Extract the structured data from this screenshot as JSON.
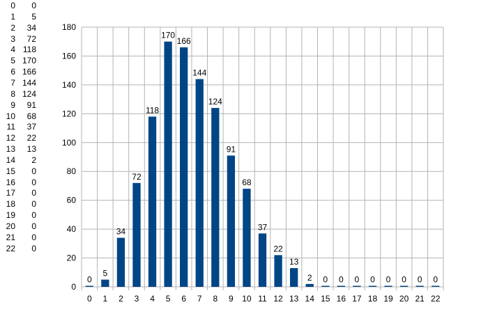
{
  "data_table": {
    "rows": [
      {
        "k": "0",
        "v": "0"
      },
      {
        "k": "1",
        "v": "5"
      },
      {
        "k": "2",
        "v": "34"
      },
      {
        "k": "3",
        "v": "72"
      },
      {
        "k": "4",
        "v": "118"
      },
      {
        "k": "5",
        "v": "170"
      },
      {
        "k": "6",
        "v": "166"
      },
      {
        "k": "7",
        "v": "144"
      },
      {
        "k": "8",
        "v": "124"
      },
      {
        "k": "9",
        "v": "91"
      },
      {
        "k": "10",
        "v": "68"
      },
      {
        "k": "11",
        "v": "37"
      },
      {
        "k": "12",
        "v": "22"
      },
      {
        "k": "13",
        "v": "13"
      },
      {
        "k": "14",
        "v": "2"
      },
      {
        "k": "15",
        "v": "0"
      },
      {
        "k": "16",
        "v": "0"
      },
      {
        "k": "17",
        "v": "0"
      },
      {
        "k": "18",
        "v": "0"
      },
      {
        "k": "19",
        "v": "0"
      },
      {
        "k": "20",
        "v": "0"
      },
      {
        "k": "21",
        "v": "0"
      },
      {
        "k": "22",
        "v": "0"
      }
    ]
  },
  "chart_data": {
    "type": "bar",
    "categories": [
      "0",
      "1",
      "2",
      "3",
      "4",
      "5",
      "6",
      "7",
      "8",
      "9",
      "10",
      "11",
      "12",
      "13",
      "14",
      "15",
      "16",
      "17",
      "18",
      "19",
      "20",
      "21",
      "22"
    ],
    "values": [
      0,
      5,
      34,
      72,
      118,
      170,
      166,
      144,
      124,
      91,
      68,
      37,
      22,
      13,
      2,
      0,
      0,
      0,
      0,
      0,
      0,
      0,
      0
    ],
    "ylim": [
      0,
      180
    ],
    "yticks": [
      0,
      20,
      40,
      60,
      80,
      100,
      120,
      140,
      160,
      180
    ],
    "grid": true,
    "data_labels": true,
    "bar_color": "#004586",
    "grid_color": "#b3b3b3"
  }
}
